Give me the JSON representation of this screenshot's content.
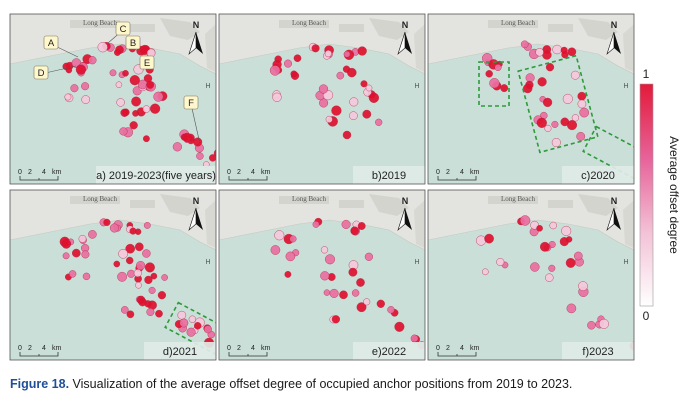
{
  "colors": {
    "sea": "#c9dfd8",
    "land": "#e3e3df",
    "frame": "#555555",
    "high": "#e0102e",
    "mid": "#ea6fa0",
    "low": "#f5c9dc",
    "cluster_outline": "#8a5a62",
    "highlight_box": "#2e9a3a",
    "scalebar": "#333333"
  },
  "map": {
    "place_label": "Long Beach",
    "north_letter": "N",
    "scale": {
      "ticks": [
        "0",
        "2",
        "4"
      ],
      "unit": "km"
    },
    "port_marker": "H"
  },
  "panels": [
    {
      "id": "a",
      "label": "a) 2019-2023(five years)",
      "callouts": [
        "A",
        "B",
        "C",
        "D",
        "E",
        "F"
      ],
      "highlight_groups": []
    },
    {
      "id": "b",
      "label": "b)2019",
      "callouts": [],
      "highlight_groups": []
    },
    {
      "id": "c",
      "label": "c)2020",
      "callouts": [],
      "highlight_groups": [
        "D",
        "E",
        "F"
      ]
    },
    {
      "id": "d",
      "label": "d)2021",
      "callouts": [],
      "highlight_groups": [
        "F"
      ]
    },
    {
      "id": "e",
      "label": "e)2022",
      "callouts": [],
      "highlight_groups": []
    },
    {
      "id": "f",
      "label": "f)2023",
      "callouts": [],
      "highlight_groups": []
    }
  ],
  "legend": {
    "title": "Average offset degree",
    "max_label": "1",
    "min_label": "0",
    "range": [
      0,
      1
    ],
    "colors": [
      "#ffffff",
      "#f3c2d6",
      "#e7649b",
      "#e31a3a"
    ]
  },
  "caption": {
    "label": "Figure 18.",
    "text": "Visualization of the average offset degree of occupied anchor positions from 2019 to 2023."
  }
}
